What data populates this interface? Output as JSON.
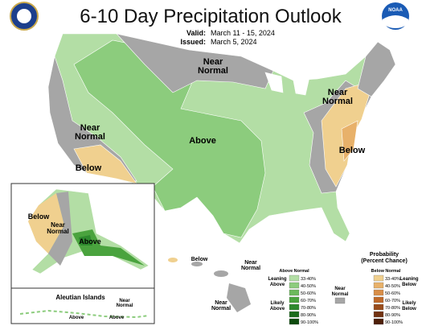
{
  "header": {
    "title": "6-10 Day Precipitation Outlook",
    "valid_label": "Valid:",
    "valid": "March 11 - 15, 2024",
    "issued_label": "Issued:",
    "issued": "March 5, 2024"
  },
  "logos": {
    "noaa": "NOAA"
  },
  "regions": [
    {
      "lines": [
        "Near",
        "Normal"
      ]
    },
    {
      "lines": [
        "Near",
        "Normal"
      ]
    },
    {
      "lines": [
        "Below"
      ]
    },
    {
      "lines": [
        "Above"
      ]
    },
    {
      "lines": [
        "Near",
        "Normal"
      ]
    },
    {
      "lines": [
        "Below"
      ]
    },
    {
      "lines": [
        "Below"
      ]
    },
    {
      "lines": [
        "Near",
        "Normal"
      ]
    },
    {
      "lines": [
        "Above"
      ]
    },
    {
      "lines": [
        "Below"
      ]
    },
    {
      "lines": [
        "Near",
        "Normal"
      ]
    },
    {
      "lines": [
        "Near",
        "Normal"
      ]
    },
    {
      "lines": [
        "Near",
        "Normal"
      ]
    },
    {
      "lines": [
        "Above"
      ]
    },
    {
      "lines": [
        "Above"
      ]
    }
  ],
  "insets": {
    "aleutian": "Aleutian Islands"
  },
  "legend": {
    "title": [
      "Probability",
      "(Percent Chance)"
    ],
    "above_header": "Above Normal",
    "below_header": "Below Normal",
    "leaning_above": [
      "Leaning",
      "Above"
    ],
    "likely_above": [
      "Likely",
      "Above"
    ],
    "near_normal": [
      "Near",
      "Normal"
    ],
    "leaning_below": [
      "Leaning",
      "Below"
    ],
    "likely_below": [
      "Likely",
      "Below"
    ],
    "near_color": "#a6a6a6",
    "above": [
      {
        "label": "33-40%",
        "color": "#b3dea5"
      },
      {
        "label": "40-50%",
        "color": "#8ccc7d"
      },
      {
        "label": "50-60%",
        "color": "#6cb95c"
      },
      {
        "label": "60-70%",
        "color": "#4aa33e"
      },
      {
        "label": "70-80%",
        "color": "#2e8a2e"
      },
      {
        "label": "80-90%",
        "color": "#1c6b1c"
      },
      {
        "label": "90-100%",
        "color": "#0d4a0d"
      }
    ],
    "below": [
      {
        "label": "33-40%",
        "color": "#f0d08f"
      },
      {
        "label": "40-50%",
        "color": "#e8b16a"
      },
      {
        "label": "50-60%",
        "color": "#d98e48"
      },
      {
        "label": "60-70%",
        "color": "#c06a2a"
      },
      {
        "label": "70-80%",
        "color": "#9a4d1c"
      },
      {
        "label": "80-90%",
        "color": "#733312"
      },
      {
        "label": "90-100%",
        "color": "#4d1f08"
      }
    ]
  }
}
